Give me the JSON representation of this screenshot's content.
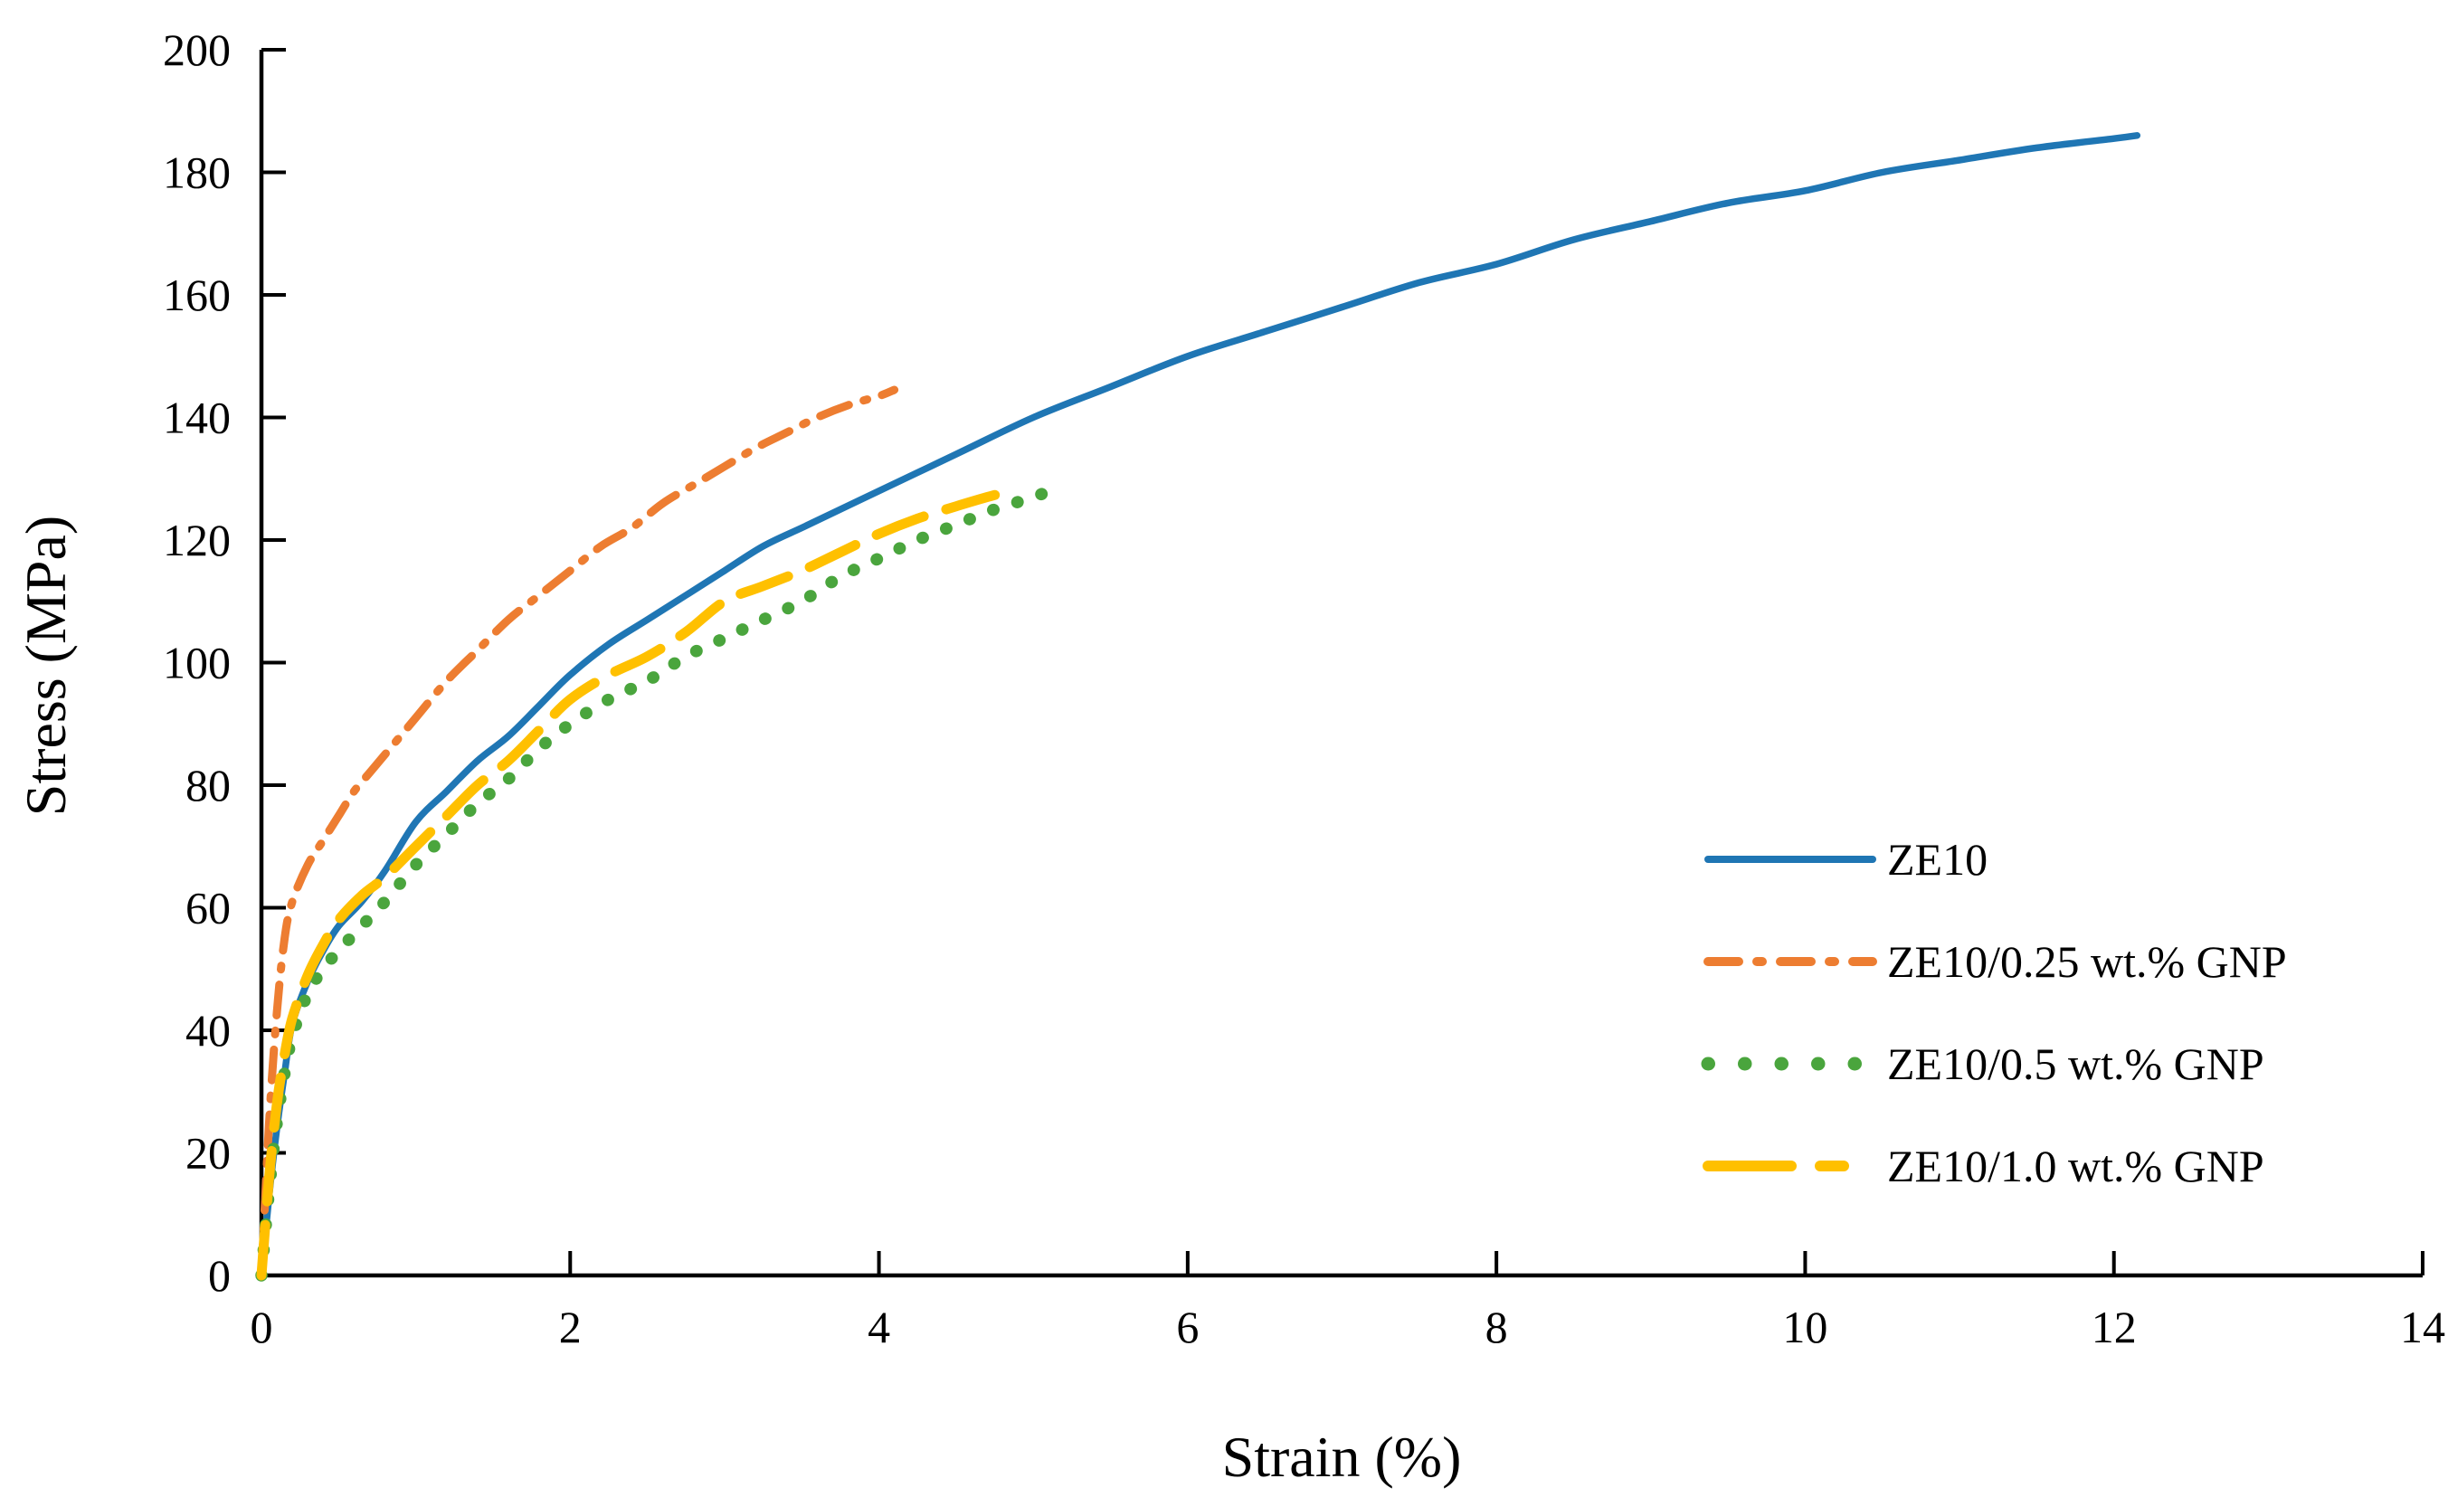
{
  "figure": {
    "background": "#ffffff",
    "axis_color": "#000000",
    "text_color": "#000000"
  },
  "chart_data": {
    "type": "line",
    "title": "",
    "xlabel": "Strain (%)",
    "ylabel": "Stress (MPa)",
    "xlim": [
      0,
      14
    ],
    "ylim": [
      0,
      200
    ],
    "xticks": [
      0,
      2,
      4,
      6,
      8,
      10,
      12,
      14
    ],
    "yticks": [
      0,
      20,
      40,
      60,
      80,
      100,
      120,
      140,
      160,
      180,
      200
    ],
    "grid": false,
    "legend_position": "right-center",
    "series": [
      {
        "name": "ZE10",
        "color": "#1F76B4",
        "style": "solid",
        "width": 7.5,
        "points": [
          [
            0,
            0
          ],
          [
            0.05,
            13
          ],
          [
            0.1,
            24
          ],
          [
            0.15,
            33
          ],
          [
            0.2,
            41
          ],
          [
            0.3,
            48
          ],
          [
            0.4,
            53
          ],
          [
            0.5,
            57
          ],
          [
            0.65,
            61
          ],
          [
            0.8,
            66
          ],
          [
            1.0,
            74
          ],
          [
            1.2,
            79
          ],
          [
            1.4,
            84
          ],
          [
            1.6,
            88
          ],
          [
            1.8,
            93
          ],
          [
            2.0,
            98
          ],
          [
            2.25,
            103
          ],
          [
            2.5,
            107
          ],
          [
            2.75,
            111
          ],
          [
            3.0,
            115
          ],
          [
            3.25,
            119
          ],
          [
            3.5,
            122
          ],
          [
            3.75,
            125
          ],
          [
            4.0,
            128
          ],
          [
            4.5,
            134
          ],
          [
            5.0,
            140
          ],
          [
            5.5,
            145
          ],
          [
            6.0,
            150
          ],
          [
            6.5,
            154
          ],
          [
            7.0,
            158
          ],
          [
            7.5,
            162
          ],
          [
            8.0,
            165
          ],
          [
            8.5,
            169
          ],
          [
            9.0,
            172
          ],
          [
            9.5,
            175
          ],
          [
            10.0,
            177
          ],
          [
            10.5,
            180
          ],
          [
            11.0,
            182
          ],
          [
            11.5,
            184
          ],
          [
            12.0,
            185.5
          ],
          [
            12.15,
            186
          ]
        ]
      },
      {
        "name": "ZE10/0.25 wt.% GNP",
        "color": "#ED7D31",
        "style": "dashdot",
        "width": 9,
        "points": [
          [
            0,
            0
          ],
          [
            0.05,
            25
          ],
          [
            0.1,
            43
          ],
          [
            0.15,
            55
          ],
          [
            0.2,
            61
          ],
          [
            0.3,
            67
          ],
          [
            0.4,
            71
          ],
          [
            0.5,
            75
          ],
          [
            0.6,
            79
          ],
          [
            0.7,
            82
          ],
          [
            0.8,
            85
          ],
          [
            0.9,
            88
          ],
          [
            1.0,
            91
          ],
          [
            1.2,
            97
          ],
          [
            1.4,
            102
          ],
          [
            1.6,
            107
          ],
          [
            1.8,
            111
          ],
          [
            2.0,
            115
          ],
          [
            2.2,
            119
          ],
          [
            2.4,
            122
          ],
          [
            2.6,
            126
          ],
          [
            2.8,
            129
          ],
          [
            3.0,
            132
          ],
          [
            3.2,
            135
          ],
          [
            3.4,
            137.5
          ],
          [
            3.6,
            140
          ],
          [
            3.8,
            142
          ],
          [
            4.0,
            143.5
          ],
          [
            4.1,
            144.5
          ]
        ]
      },
      {
        "name": "ZE10/0.5 wt.% GNP",
        "color": "#4AA53D",
        "style": "dotted",
        "width": 13.5,
        "points": [
          [
            0,
            0
          ],
          [
            0.05,
            14
          ],
          [
            0.1,
            25
          ],
          [
            0.15,
            33
          ],
          [
            0.2,
            39
          ],
          [
            0.3,
            46
          ],
          [
            0.4,
            50
          ],
          [
            0.5,
            53
          ],
          [
            0.65,
            57
          ],
          [
            0.8,
            61
          ],
          [
            1.0,
            67
          ],
          [
            1.2,
            72
          ],
          [
            1.4,
            77
          ],
          [
            1.6,
            81
          ],
          [
            1.8,
            86
          ],
          [
            2.0,
            90
          ],
          [
            2.25,
            94
          ],
          [
            2.5,
            97
          ],
          [
            2.75,
            101
          ],
          [
            3.0,
            104
          ],
          [
            3.25,
            107
          ],
          [
            3.5,
            110
          ],
          [
            3.75,
            114
          ],
          [
            4.0,
            117
          ],
          [
            4.25,
            120
          ],
          [
            4.5,
            122.5
          ],
          [
            4.75,
            125
          ],
          [
            5.0,
            127
          ],
          [
            5.2,
            129
          ]
        ]
      },
      {
        "name": "ZE10/1.0 wt.% GNP",
        "color": "#FFC000",
        "style": "dashed",
        "width": 11,
        "points": [
          [
            0,
            0
          ],
          [
            0.05,
            16
          ],
          [
            0.1,
            28
          ],
          [
            0.15,
            36
          ],
          [
            0.2,
            42
          ],
          [
            0.3,
            49
          ],
          [
            0.4,
            54
          ],
          [
            0.5,
            58
          ],
          [
            0.65,
            62
          ],
          [
            0.8,
            65
          ],
          [
            1.0,
            70
          ],
          [
            1.2,
            75
          ],
          [
            1.4,
            80
          ],
          [
            1.6,
            84
          ],
          [
            1.8,
            89
          ],
          [
            2.0,
            94
          ],
          [
            2.25,
            98
          ],
          [
            2.5,
            101
          ],
          [
            2.75,
            105
          ],
          [
            3.0,
            110
          ],
          [
            3.25,
            112.5
          ],
          [
            3.5,
            115
          ],
          [
            3.75,
            118
          ],
          [
            4.0,
            121
          ],
          [
            4.25,
            123.5
          ],
          [
            4.5,
            125.5
          ],
          [
            4.7,
            127
          ],
          [
            4.85,
            128
          ]
        ]
      }
    ]
  },
  "legend": {
    "items": [
      {
        "label": "ZE10"
      },
      {
        "label": "ZE10/0.25 wt.% GNP"
      },
      {
        "label": "ZE10/0.5 wt.% GNP"
      },
      {
        "label": "ZE10/1.0 wt.% GNP"
      }
    ]
  }
}
